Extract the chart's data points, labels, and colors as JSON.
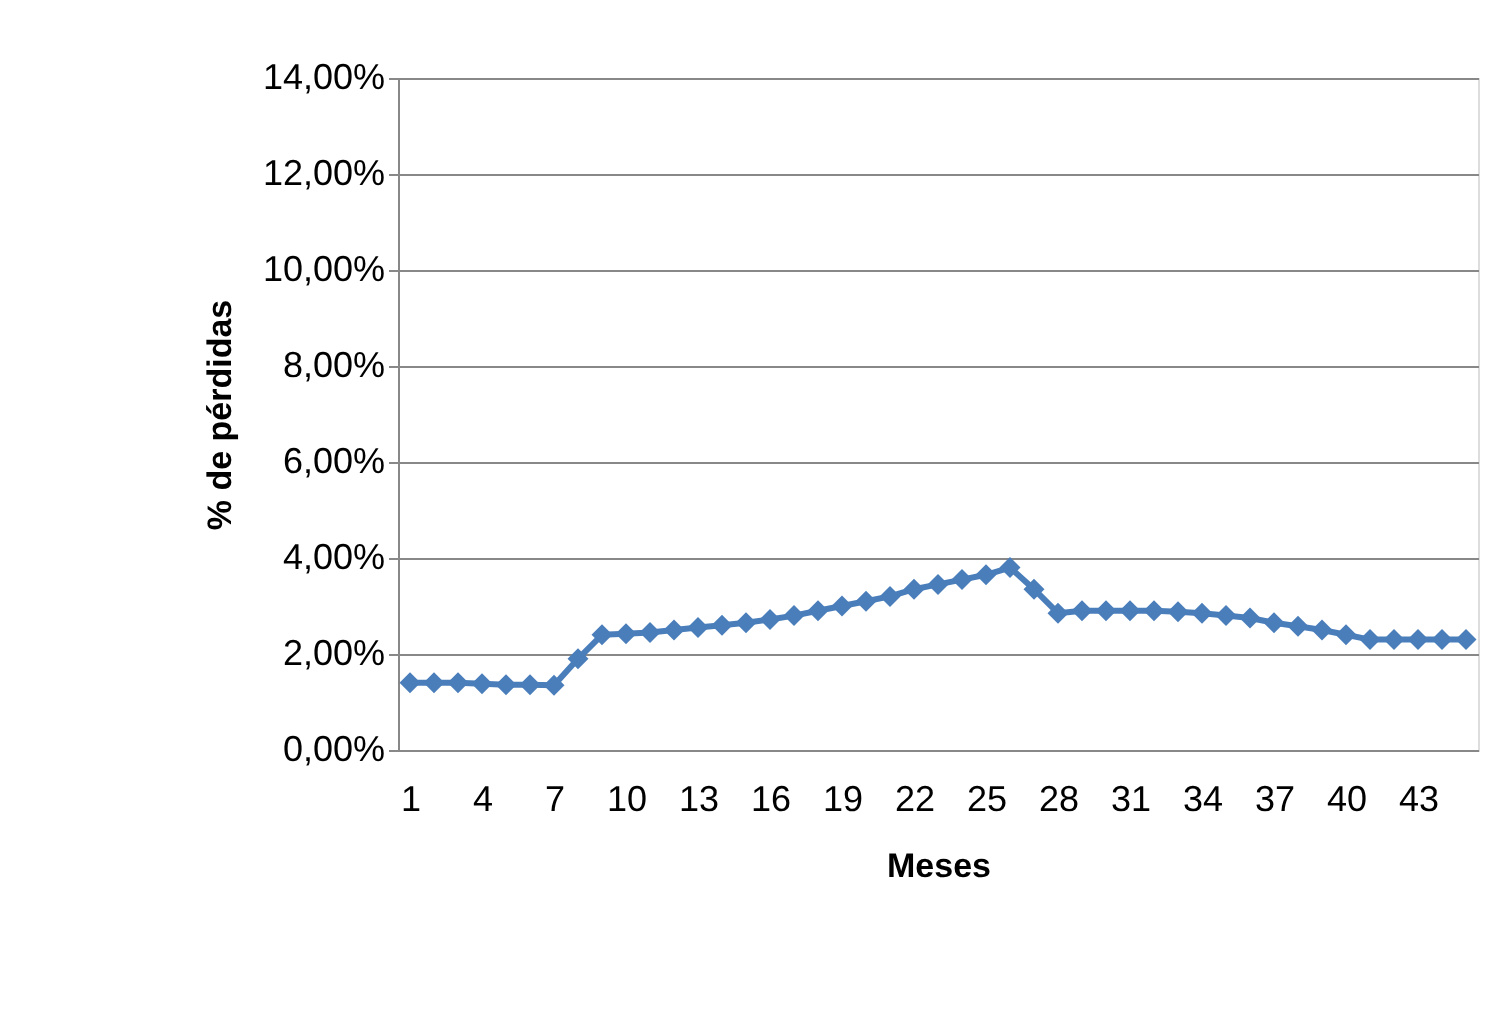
{
  "chart_data": {
    "type": "line",
    "xlabel": "Meses",
    "ylabel": "% de pérdidas",
    "categories": [
      "1",
      null,
      null,
      "4",
      null,
      null,
      "7",
      null,
      null,
      "10",
      null,
      null,
      "13",
      null,
      null,
      "16",
      null,
      null,
      "19",
      null,
      null,
      "22",
      null,
      null,
      "25",
      null,
      null,
      "28",
      null,
      null,
      "31",
      null,
      null,
      "34",
      null,
      null,
      "37",
      null,
      null,
      "40",
      null,
      null,
      "43",
      null,
      null
    ],
    "series": [
      {
        "color": "#4a7ebb",
        "values": [
          1.4,
          1.4,
          1.4,
          1.38,
          1.36,
          1.36,
          1.35,
          1.9,
          2.4,
          2.42,
          2.45,
          2.5,
          2.55,
          2.6,
          2.65,
          2.72,
          2.8,
          2.9,
          3.0,
          3.1,
          3.2,
          3.35,
          3.45,
          3.55,
          3.65,
          3.8,
          3.35,
          2.85,
          2.9,
          2.9,
          2.9,
          2.9,
          2.88,
          2.85,
          2.8,
          2.75,
          2.65,
          2.58,
          2.5,
          2.4,
          2.3,
          2.3,
          2.3,
          2.3,
          2.3
        ]
      }
    ],
    "ylim": [
      0,
      14
    ],
    "yticks": [
      {
        "value": 0,
        "label": "0,00%"
      },
      {
        "value": 2,
        "label": "2,00%"
      },
      {
        "value": 4,
        "label": "4,00%"
      },
      {
        "value": 6,
        "label": "6,00%"
      },
      {
        "value": 8,
        "label": "8,00%"
      },
      {
        "value": 10,
        "label": "10,00%"
      },
      {
        "value": 12,
        "label": "12,00%"
      },
      {
        "value": 14,
        "label": "14,00%"
      }
    ],
    "grid": "y",
    "marker": "diamond",
    "line_style": "solid",
    "legend": false
  }
}
